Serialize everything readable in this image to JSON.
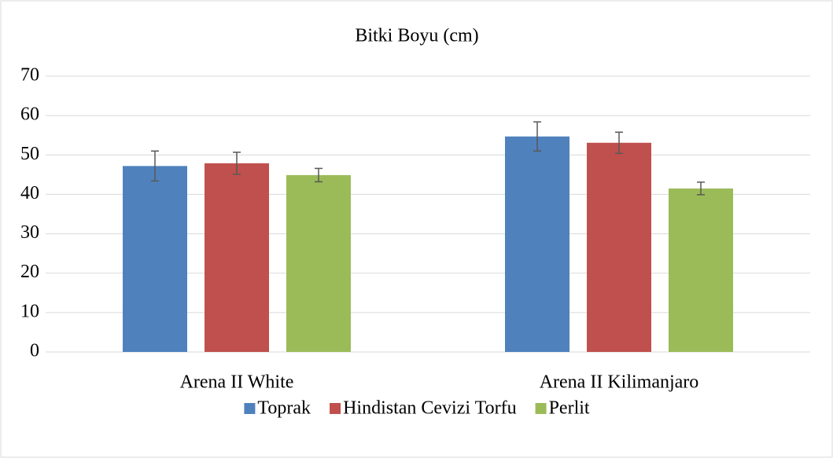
{
  "chart_data": {
    "type": "bar",
    "title": "Bitki Boyu (cm)",
    "categories": [
      "Arena II White",
      "Arena II Kilimanjaro"
    ],
    "series": [
      {
        "name": "Toprak",
        "color": "#4f81bd",
        "values": [
          47.2,
          54.7
        ],
        "errors": [
          3.8,
          3.7
        ]
      },
      {
        "name": "Hindistan Cevizi Torfu",
        "color": "#c0504d",
        "values": [
          47.9,
          53.1
        ],
        "errors": [
          2.8,
          2.7
        ]
      },
      {
        "name": "Perlit",
        "color": "#9bbb59",
        "values": [
          44.9,
          41.5
        ],
        "errors": [
          1.7,
          1.6
        ]
      }
    ],
    "ylim": [
      0,
      70
    ],
    "yticks": [
      0,
      10,
      20,
      30,
      40,
      50,
      60,
      70
    ],
    "grid": true,
    "legend": "bottom"
  }
}
